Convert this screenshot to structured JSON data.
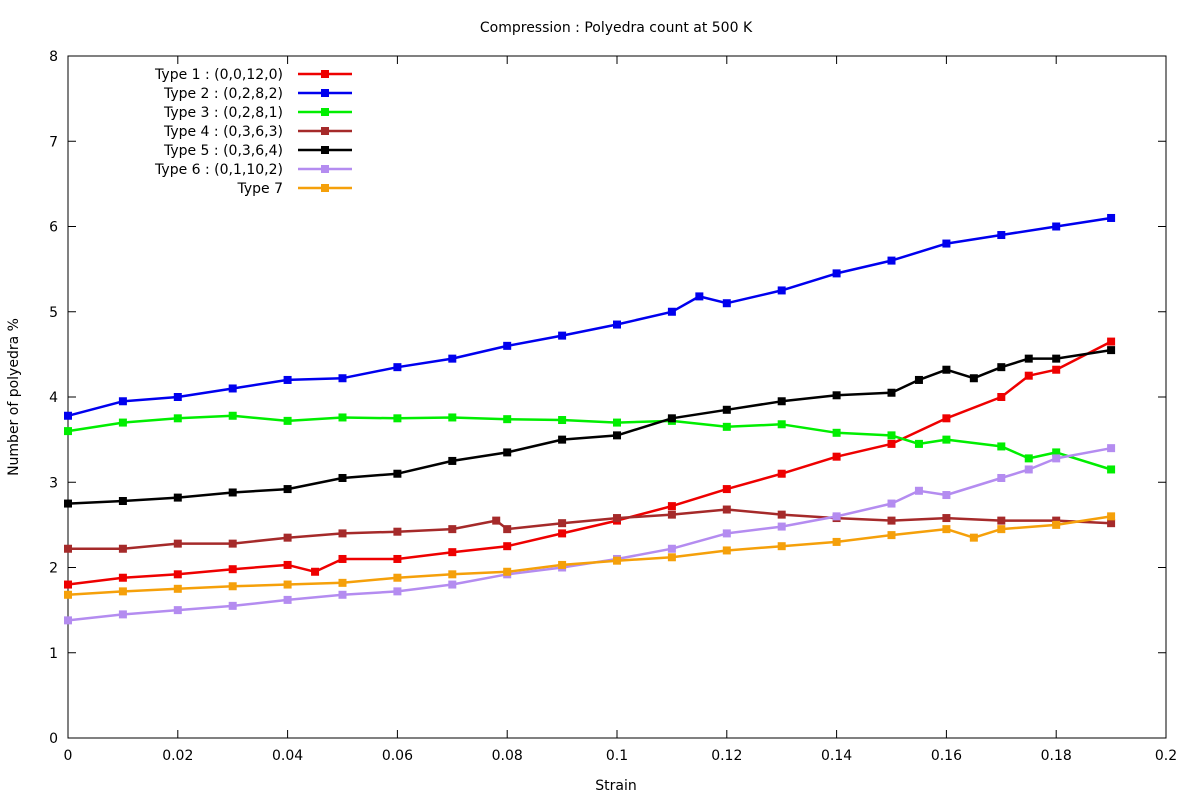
{
  "chart_data": {
    "type": "line",
    "title": "Compression : Polyedra count at 500 K",
    "xlabel": "Strain",
    "ylabel": "Number of polyedra %",
    "xlim": [
      0,
      0.2
    ],
    "ylim": [
      0,
      8
    ],
    "x_ticks": [
      "0",
      "0.02",
      "0.04",
      "0.06",
      "0.08",
      "0.1",
      "0.12",
      "0.14",
      "0.16",
      "0.18",
      "0.2"
    ],
    "y_ticks": [
      "0",
      "1",
      "2",
      "3",
      "4",
      "5",
      "6",
      "7",
      "8"
    ],
    "grid": false,
    "legend_position": "top-left",
    "markers": "filled-square",
    "series": [
      {
        "name": "Type 1 : (0,0,12,0)",
        "color": "#ee0000",
        "points": [
          [
            0,
            1.8
          ],
          [
            0.01,
            1.88
          ],
          [
            0.02,
            1.92
          ],
          [
            0.03,
            1.98
          ],
          [
            0.04,
            2.03
          ],
          [
            0.045,
            1.95
          ],
          [
            0.05,
            2.1
          ],
          [
            0.06,
            2.1
          ],
          [
            0.07,
            2.18
          ],
          [
            0.08,
            2.25
          ],
          [
            0.09,
            2.4
          ],
          [
            0.1,
            2.55
          ],
          [
            0.11,
            2.72
          ],
          [
            0.12,
            2.92
          ],
          [
            0.13,
            3.1
          ],
          [
            0.14,
            3.3
          ],
          [
            0.15,
            3.45
          ],
          [
            0.16,
            3.75
          ],
          [
            0.17,
            4.0
          ],
          [
            0.175,
            4.25
          ],
          [
            0.18,
            4.32
          ],
          [
            0.19,
            4.65
          ]
        ]
      },
      {
        "name": "Type 2 : (0,2,8,2)",
        "color": "#0000ee",
        "points": [
          [
            0,
            3.78
          ],
          [
            0.01,
            3.95
          ],
          [
            0.02,
            4.0
          ],
          [
            0.03,
            4.1
          ],
          [
            0.04,
            4.2
          ],
          [
            0.05,
            4.22
          ],
          [
            0.06,
            4.35
          ],
          [
            0.07,
            4.45
          ],
          [
            0.08,
            4.6
          ],
          [
            0.09,
            4.72
          ],
          [
            0.1,
            4.85
          ],
          [
            0.11,
            5.0
          ],
          [
            0.115,
            5.18
          ],
          [
            0.12,
            5.1
          ],
          [
            0.13,
            5.25
          ],
          [
            0.14,
            5.45
          ],
          [
            0.15,
            5.6
          ],
          [
            0.16,
            5.8
          ],
          [
            0.17,
            5.9
          ],
          [
            0.18,
            6.0
          ],
          [
            0.19,
            6.1
          ]
        ]
      },
      {
        "name": "Type 3 : (0,2,8,1)",
        "color": "#00ee00",
        "points": [
          [
            0,
            3.6
          ],
          [
            0.01,
            3.7
          ],
          [
            0.02,
            3.75
          ],
          [
            0.03,
            3.78
          ],
          [
            0.04,
            3.72
          ],
          [
            0.05,
            3.76
          ],
          [
            0.06,
            3.75
          ],
          [
            0.07,
            3.76
          ],
          [
            0.08,
            3.74
          ],
          [
            0.09,
            3.73
          ],
          [
            0.1,
            3.7
          ],
          [
            0.11,
            3.72
          ],
          [
            0.12,
            3.65
          ],
          [
            0.13,
            3.68
          ],
          [
            0.14,
            3.58
          ],
          [
            0.15,
            3.55
          ],
          [
            0.155,
            3.45
          ],
          [
            0.16,
            3.5
          ],
          [
            0.17,
            3.42
          ],
          [
            0.175,
            3.28
          ],
          [
            0.18,
            3.35
          ],
          [
            0.19,
            3.15
          ]
        ]
      },
      {
        "name": "Type 4 : (0,3,6,3)",
        "color": "#a52a2a",
        "points": [
          [
            0,
            2.22
          ],
          [
            0.01,
            2.22
          ],
          [
            0.02,
            2.28
          ],
          [
            0.03,
            2.28
          ],
          [
            0.04,
            2.35
          ],
          [
            0.05,
            2.4
          ],
          [
            0.06,
            2.42
          ],
          [
            0.07,
            2.45
          ],
          [
            0.078,
            2.55
          ],
          [
            0.08,
            2.45
          ],
          [
            0.09,
            2.52
          ],
          [
            0.1,
            2.58
          ],
          [
            0.11,
            2.62
          ],
          [
            0.12,
            2.68
          ],
          [
            0.13,
            2.62
          ],
          [
            0.14,
            2.58
          ],
          [
            0.15,
            2.55
          ],
          [
            0.16,
            2.58
          ],
          [
            0.17,
            2.55
          ],
          [
            0.18,
            2.55
          ],
          [
            0.19,
            2.52
          ]
        ]
      },
      {
        "name": "Type 5 : (0,3,6,4)",
        "color": "#000000",
        "points": [
          [
            0,
            2.75
          ],
          [
            0.01,
            2.78
          ],
          [
            0.02,
            2.82
          ],
          [
            0.03,
            2.88
          ],
          [
            0.04,
            2.92
          ],
          [
            0.05,
            3.05
          ],
          [
            0.06,
            3.1
          ],
          [
            0.07,
            3.25
          ],
          [
            0.08,
            3.35
          ],
          [
            0.09,
            3.5
          ],
          [
            0.1,
            3.55
          ],
          [
            0.11,
            3.75
          ],
          [
            0.12,
            3.85
          ],
          [
            0.13,
            3.95
          ],
          [
            0.14,
            4.02
          ],
          [
            0.15,
            4.05
          ],
          [
            0.155,
            4.2
          ],
          [
            0.16,
            4.32
          ],
          [
            0.165,
            4.22
          ],
          [
            0.17,
            4.35
          ],
          [
            0.175,
            4.45
          ],
          [
            0.18,
            4.45
          ],
          [
            0.19,
            4.55
          ]
        ]
      },
      {
        "name": "Type 6 : (0,1,10,2)",
        "color": "#b48cf0",
        "points": [
          [
            0,
            1.38
          ],
          [
            0.01,
            1.45
          ],
          [
            0.02,
            1.5
          ],
          [
            0.03,
            1.55
          ],
          [
            0.04,
            1.62
          ],
          [
            0.05,
            1.68
          ],
          [
            0.06,
            1.72
          ],
          [
            0.07,
            1.8
          ],
          [
            0.08,
            1.92
          ],
          [
            0.09,
            2.0
          ],
          [
            0.1,
            2.1
          ],
          [
            0.11,
            2.22
          ],
          [
            0.12,
            2.4
          ],
          [
            0.13,
            2.48
          ],
          [
            0.14,
            2.6
          ],
          [
            0.15,
            2.75
          ],
          [
            0.155,
            2.9
          ],
          [
            0.16,
            2.85
          ],
          [
            0.17,
            3.05
          ],
          [
            0.175,
            3.15
          ],
          [
            0.18,
            3.28
          ],
          [
            0.19,
            3.4
          ]
        ]
      },
      {
        "name": "Type 7",
        "color": "#f5a00a",
        "points": [
          [
            0,
            1.68
          ],
          [
            0.01,
            1.72
          ],
          [
            0.02,
            1.75
          ],
          [
            0.03,
            1.78
          ],
          [
            0.04,
            1.8
          ],
          [
            0.05,
            1.82
          ],
          [
            0.06,
            1.88
          ],
          [
            0.07,
            1.92
          ],
          [
            0.08,
            1.95
          ],
          [
            0.09,
            2.03
          ],
          [
            0.1,
            2.08
          ],
          [
            0.11,
            2.12
          ],
          [
            0.12,
            2.2
          ],
          [
            0.13,
            2.25
          ],
          [
            0.14,
            2.3
          ],
          [
            0.15,
            2.38
          ],
          [
            0.16,
            2.45
          ],
          [
            0.165,
            2.35
          ],
          [
            0.17,
            2.45
          ],
          [
            0.18,
            2.5
          ],
          [
            0.19,
            2.6
          ]
        ]
      }
    ]
  }
}
